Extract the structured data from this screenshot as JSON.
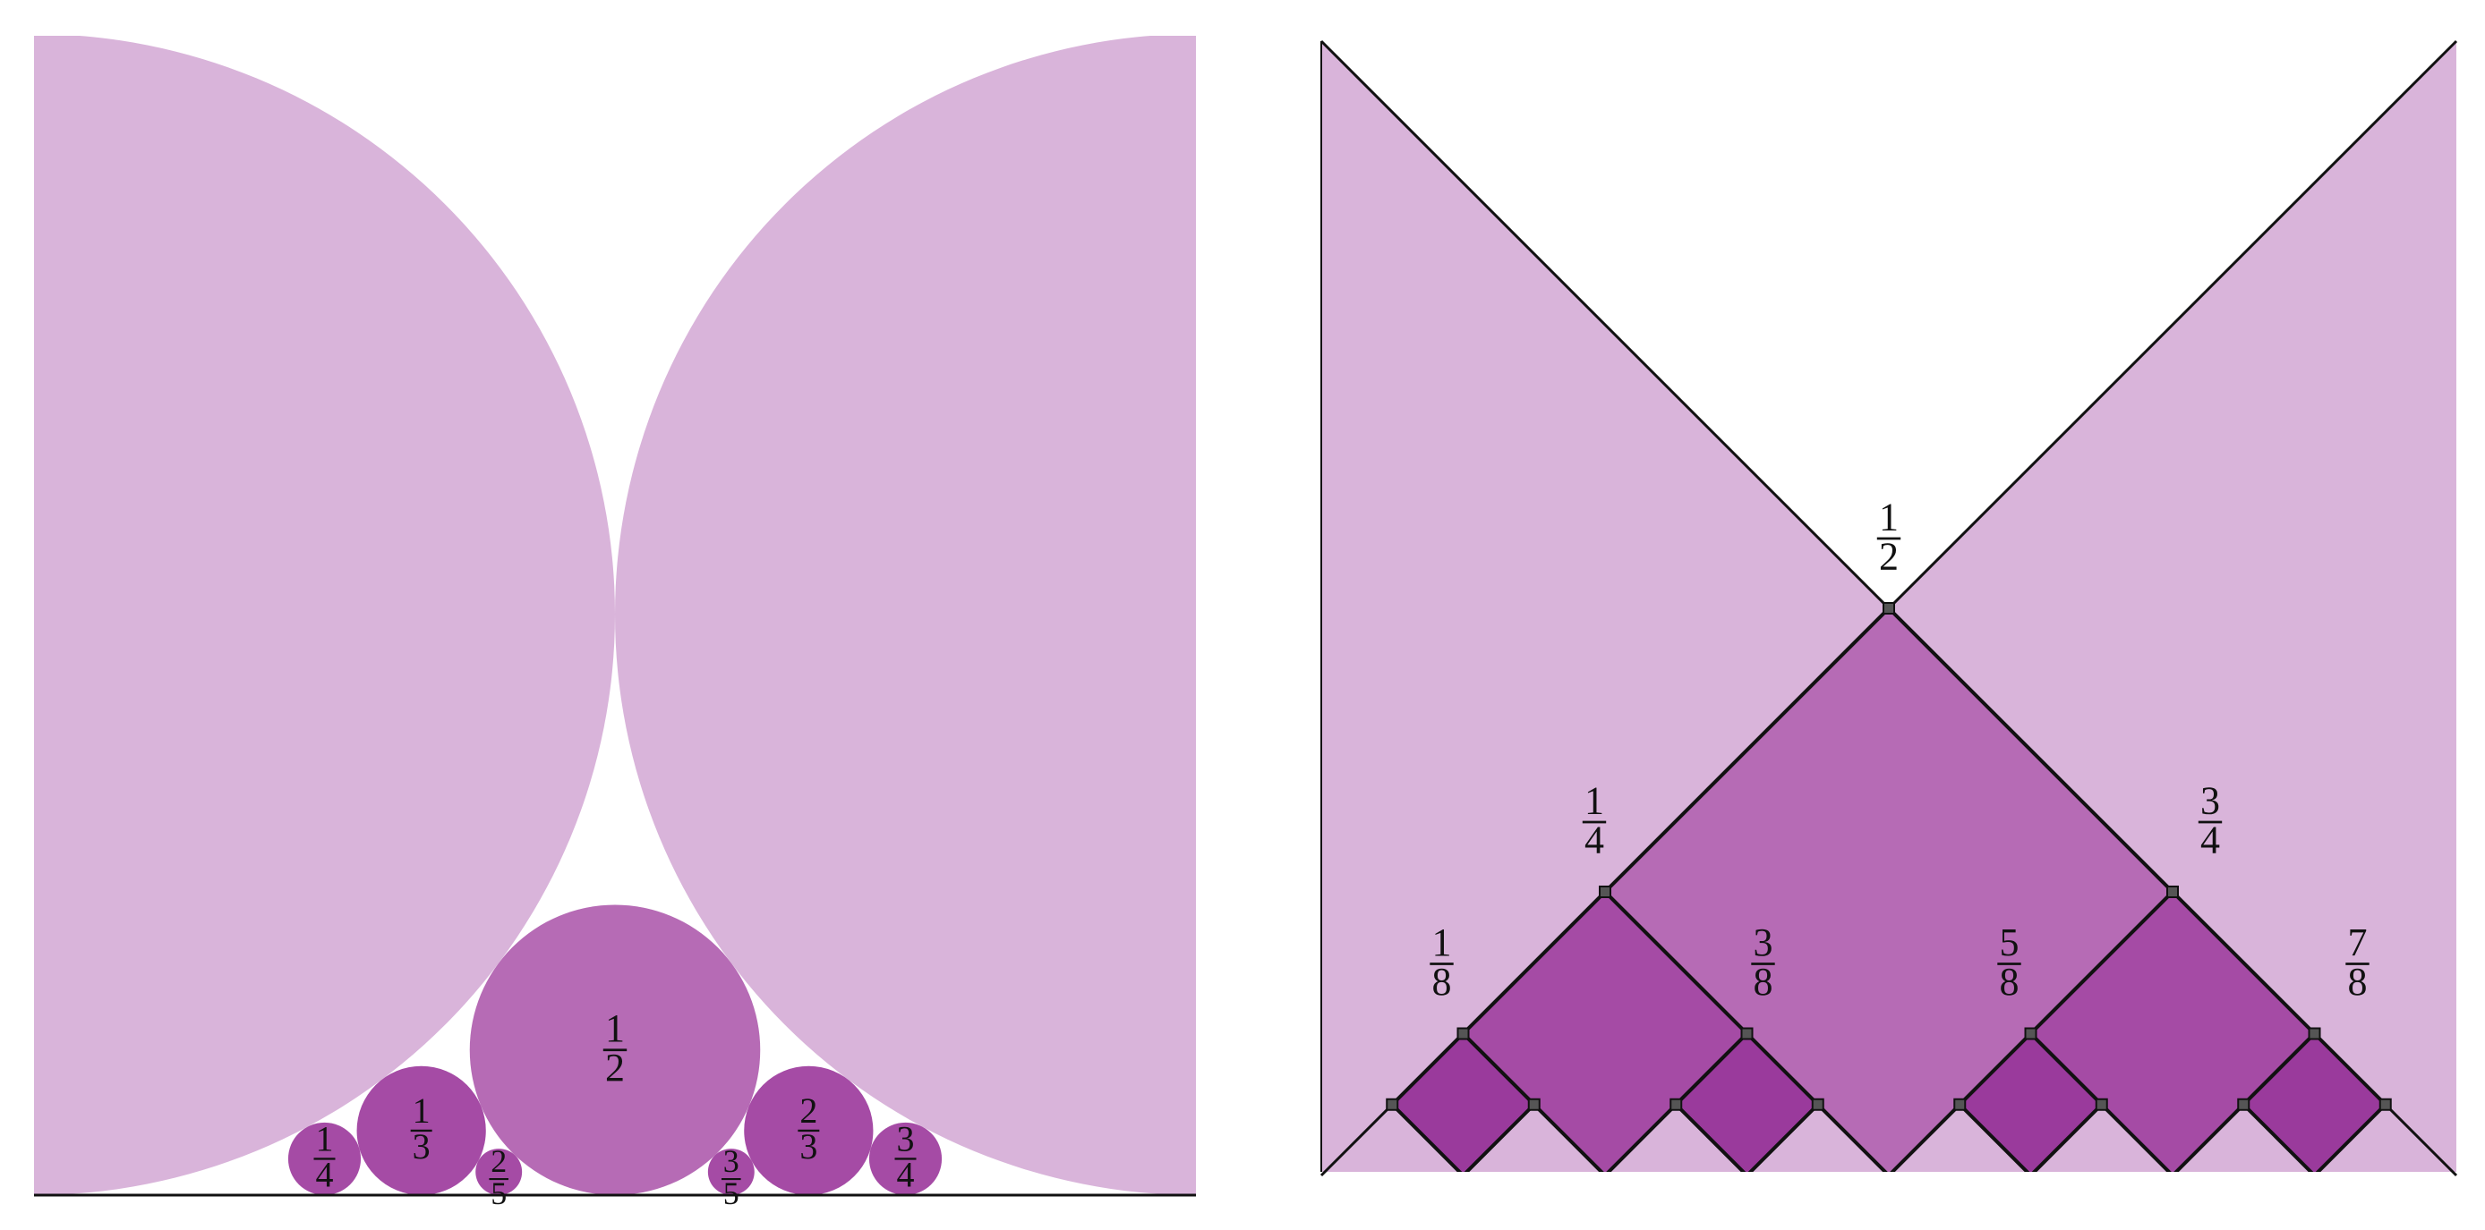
{
  "colors": {
    "light": "#d9b4da",
    "medium": "#b66bb5",
    "dark1": "#a54ba5",
    "dark2": "#9a3a9c",
    "line": "#111111",
    "background": "#ffffff"
  },
  "ford_circles": {
    "large": [
      {
        "name": "left-large-circle",
        "p": 0,
        "q": 1
      },
      {
        "name": "right-large-circle",
        "p": 1,
        "q": 1
      }
    ],
    "labeled": [
      {
        "name": "circle-1-4",
        "p": 1,
        "q": 4,
        "num": "1",
        "den": "4",
        "tone": "dark1"
      },
      {
        "name": "circle-1-3",
        "p": 1,
        "q": 3,
        "num": "1",
        "den": "3",
        "tone": "dark1"
      },
      {
        "name": "circle-2-5",
        "p": 2,
        "q": 5,
        "num": "2",
        "den": "5",
        "tone": "dark1"
      },
      {
        "name": "circle-1-2",
        "p": 1,
        "q": 2,
        "num": "1",
        "den": "2",
        "tone": "medium"
      },
      {
        "name": "circle-3-5",
        "p": 3,
        "q": 5,
        "num": "3",
        "den": "5",
        "tone": "dark1"
      },
      {
        "name": "circle-2-3",
        "p": 2,
        "q": 3,
        "num": "2",
        "den": "3",
        "tone": "dark1"
      },
      {
        "name": "circle-3-4",
        "p": 3,
        "q": 4,
        "num": "3",
        "den": "4",
        "tone": "dark1"
      }
    ]
  },
  "dyadic_squares": {
    "labeled": [
      {
        "name": "node-1-2",
        "x": 0.5,
        "level": 1,
        "num": "1",
        "den": "2"
      },
      {
        "name": "node-1-4",
        "x": 0.25,
        "level": 2,
        "num": "1",
        "den": "4"
      },
      {
        "name": "node-3-4",
        "x": 0.75,
        "level": 2,
        "num": "3",
        "den": "4"
      },
      {
        "name": "node-1-8",
        "x": 0.125,
        "level": 3,
        "num": "1",
        "den": "8"
      },
      {
        "name": "node-3-8",
        "x": 0.375,
        "level": 3,
        "num": "3",
        "den": "8"
      },
      {
        "name": "node-5-8",
        "x": 0.625,
        "level": 3,
        "num": "5",
        "den": "8"
      },
      {
        "name": "node-7-8",
        "x": 0.875,
        "level": 3,
        "num": "7",
        "den": "8"
      }
    ]
  }
}
